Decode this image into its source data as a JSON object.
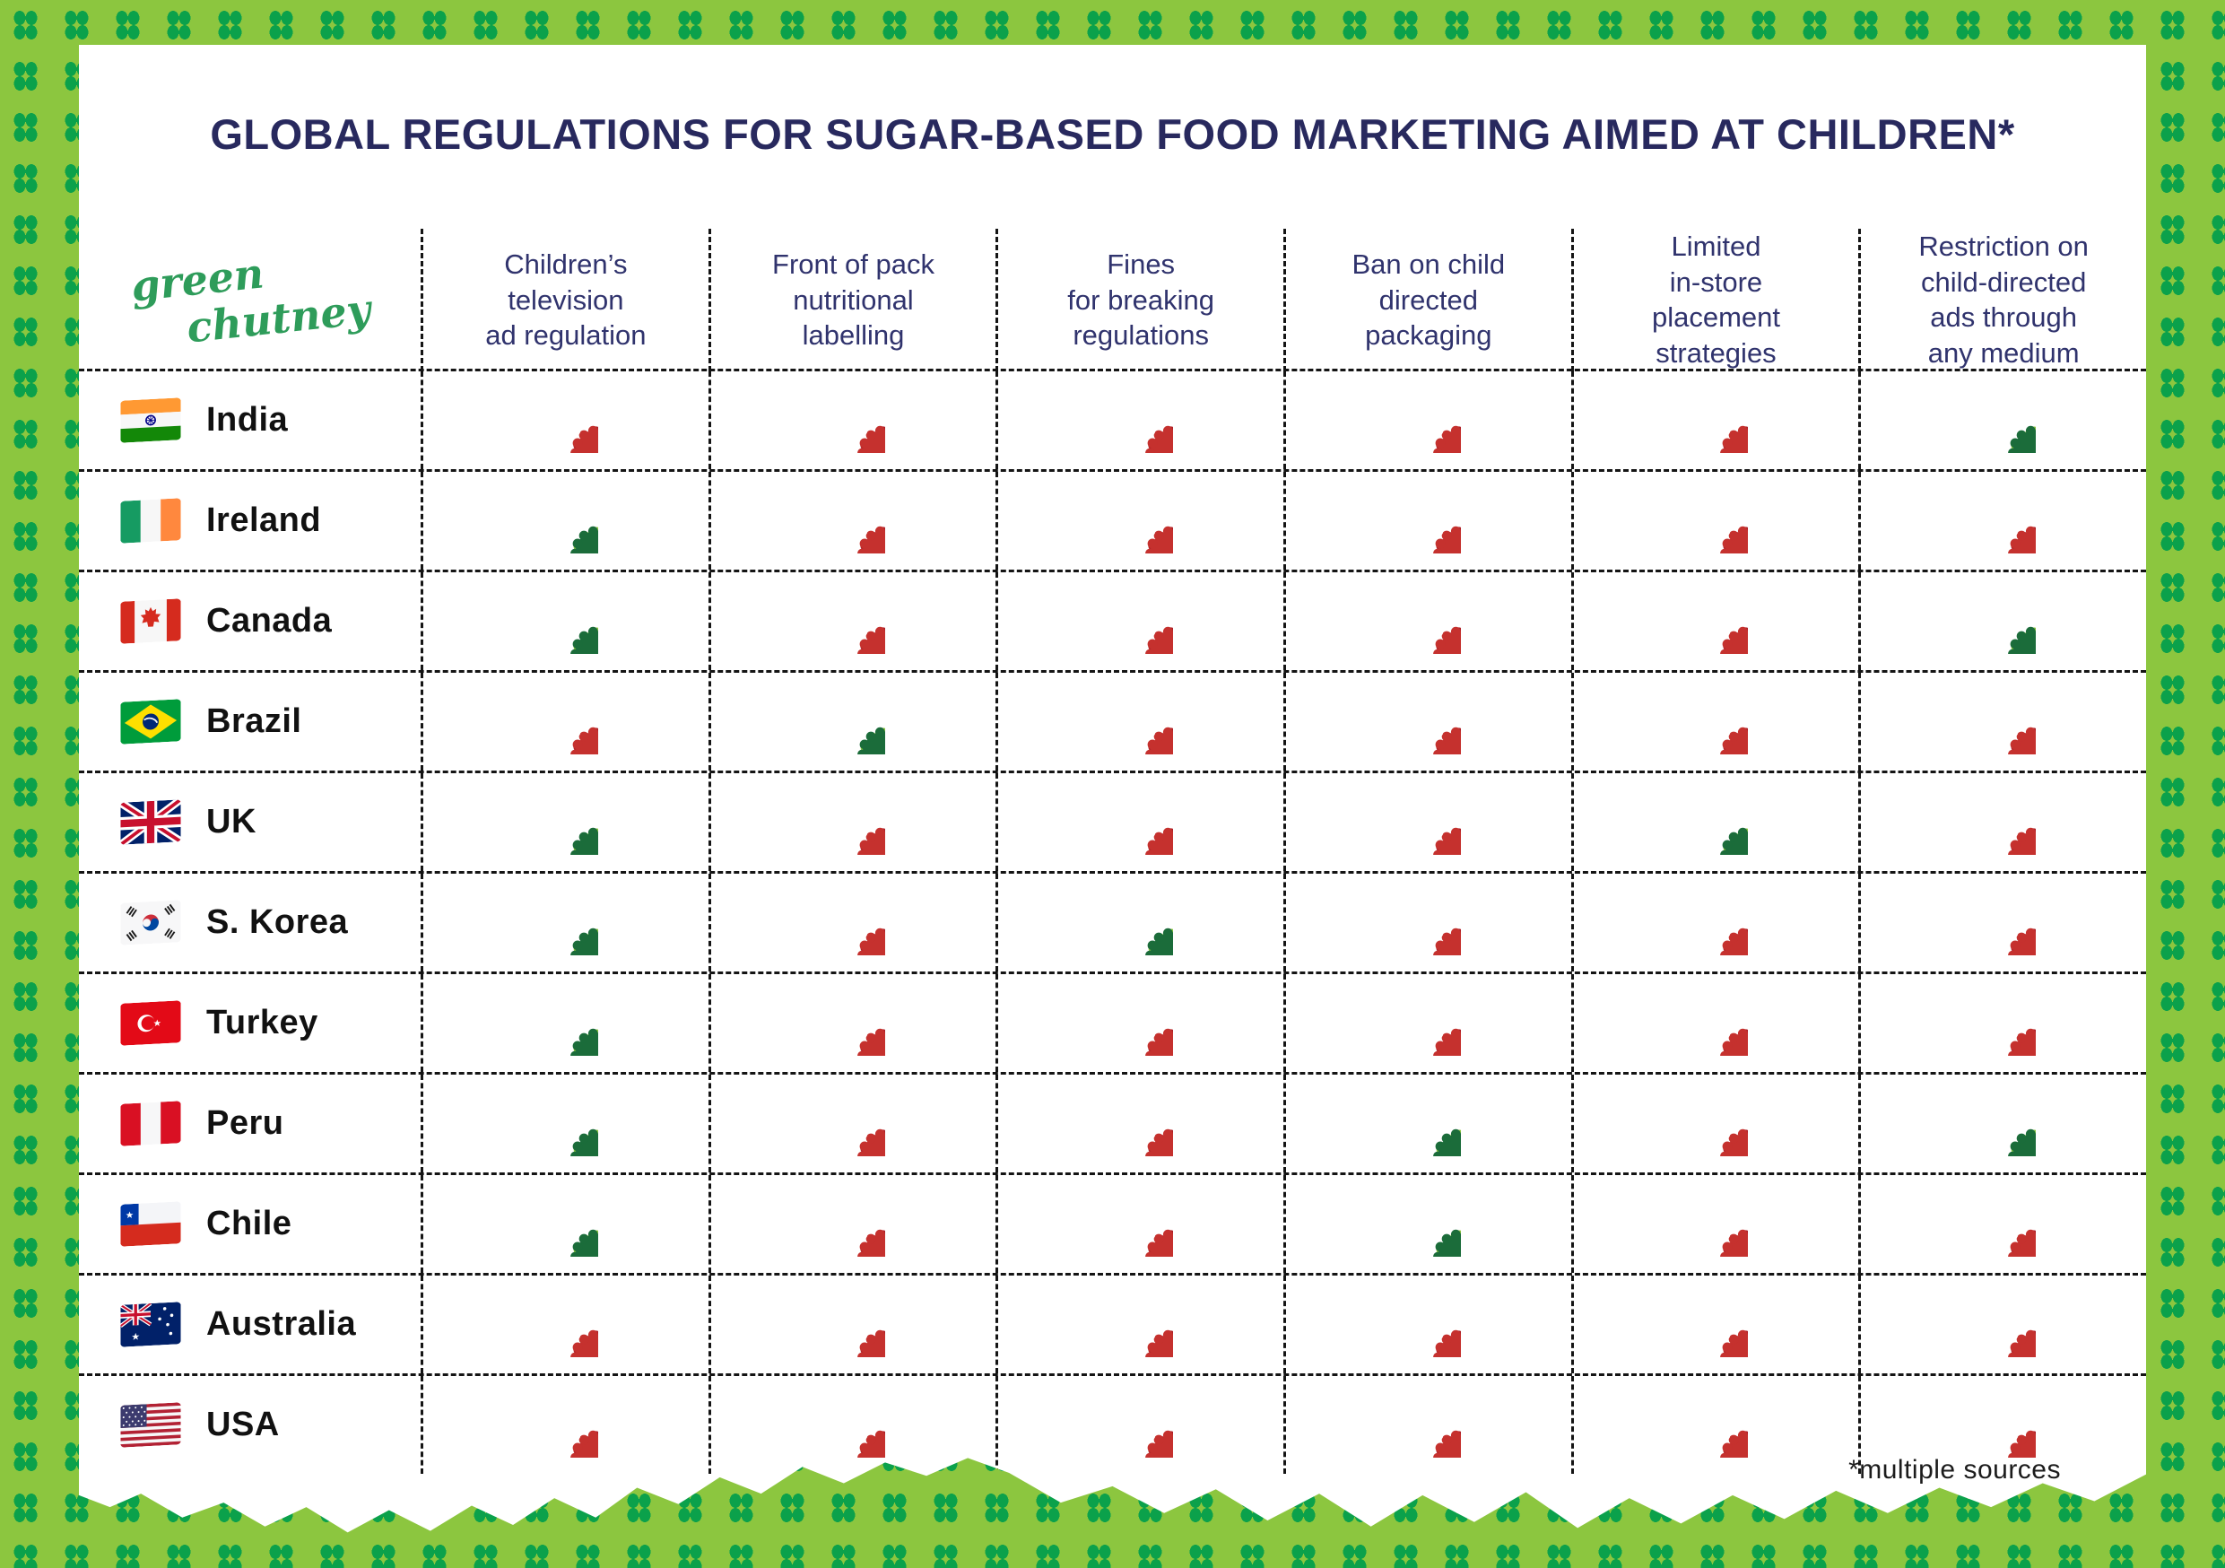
{
  "header": {
    "title": "GLOBAL REGULATIONS FOR SUGAR-BASED FOOD MARKETING AIMED AT CHILDREN*",
    "logo_line1": "green",
    "logo_line2": "chutney"
  },
  "table": {
    "columns": [
      {
        "label": "Children’s\ntelevision\nad regulation"
      },
      {
        "label": "Front of pack\nnutritional\nlabelling"
      },
      {
        "label": "Fines\nfor breaking\nregulations"
      },
      {
        "label": "Ban on child\ndirected\npackaging"
      },
      {
        "label": "Limited\nin-store\nplacement\nstrategies"
      },
      {
        "label": "Restriction on\nchild-directed\nads through\nany medium"
      }
    ],
    "rows": [
      {
        "country": "India",
        "flag": "india",
        "values": [
          false,
          false,
          false,
          false,
          false,
          true
        ]
      },
      {
        "country": "Ireland",
        "flag": "ireland",
        "values": [
          true,
          false,
          false,
          false,
          false,
          false
        ]
      },
      {
        "country": "Canada",
        "flag": "canada",
        "values": [
          true,
          false,
          false,
          false,
          false,
          true
        ]
      },
      {
        "country": "Brazil",
        "flag": "brazil",
        "values": [
          false,
          true,
          false,
          false,
          false,
          false
        ]
      },
      {
        "country": "UK",
        "flag": "uk",
        "values": [
          true,
          false,
          false,
          false,
          true,
          false
        ]
      },
      {
        "country": "S. Korea",
        "flag": "skorea",
        "values": [
          true,
          false,
          true,
          false,
          false,
          false
        ]
      },
      {
        "country": "Turkey",
        "flag": "turkey",
        "values": [
          true,
          false,
          false,
          false,
          false,
          false
        ]
      },
      {
        "country": "Peru",
        "flag": "peru",
        "values": [
          true,
          false,
          false,
          true,
          false,
          true
        ]
      },
      {
        "country": "Chile",
        "flag": "chile",
        "values": [
          true,
          false,
          false,
          true,
          false,
          false
        ]
      },
      {
        "country": "Australia",
        "flag": "australia",
        "values": [
          false,
          false,
          false,
          false,
          false,
          false
        ]
      },
      {
        "country": "USA",
        "flag": "usa",
        "values": [
          false,
          false,
          false,
          false,
          false,
          false
        ]
      }
    ]
  },
  "footnote": "*multiple sources",
  "icons": {
    "check": "check-badge-icon",
    "cross": "cross-badge-icon"
  },
  "colors": {
    "background_green": "#8CC63F",
    "dot_green": "#0BA14B",
    "title_navy": "#28295E",
    "header_navy": "#30336D",
    "check_green": "#1B6C3A",
    "check_rim_green": "#8CC63E",
    "cross_red": "#C5312E",
    "cross_rim_red": "#AD2027",
    "logo_green": "#2E9C5A"
  }
}
